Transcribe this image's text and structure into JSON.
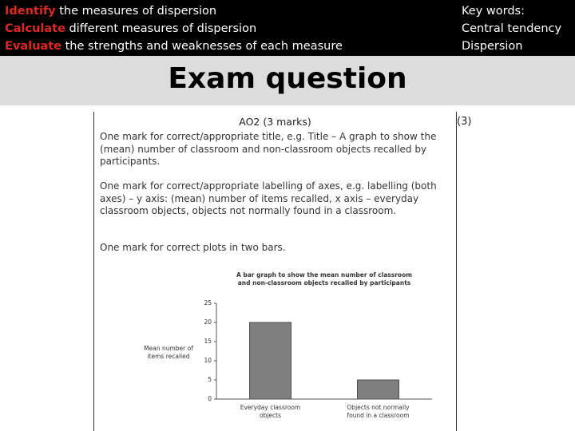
{
  "objectives": [
    {
      "verb": "Identify",
      "text": "the measures of dispersion"
    },
    {
      "verb": "Calculate",
      "text": "different measures of  dispersion"
    },
    {
      "verb": "Evaluate",
      "text": "the strengths and weaknesses of each measure"
    }
  ],
  "key_words": {
    "heading": "Key words:",
    "items": [
      "Central tendency",
      "Dispersion"
    ]
  },
  "title": "Exam question",
  "marks_total": "(3)",
  "mark_scheme": {
    "heading": "AO2 (3 marks)",
    "points": [
      "One mark for correct/appropriate title, e.g. Title – A graph to show the (mean) number of classroom and non-classroom objects recalled by participants.",
      "One mark for correct/appropriate labelling of axes, e.g. labelling (both axes) – y axis: (mean) number of items recalled, x axis – everyday classroom objects, objects not normally found in a classroom.",
      "One mark for correct plots in two bars."
    ]
  },
  "chart_data": {
    "type": "bar",
    "title": "A bar graph to show the mean number of classroom and non-classroom objects recalled by participants",
    "y_label": "Mean number of items recalled",
    "categories": [
      "Everyday classroom objects",
      "Objects not normally found in a classroom"
    ],
    "values": [
      20,
      5
    ],
    "color": "#7f7f7f",
    "ylim": [
      0,
      25
    ],
    "yticks": [
      0,
      5,
      10,
      15,
      20,
      25
    ]
  }
}
